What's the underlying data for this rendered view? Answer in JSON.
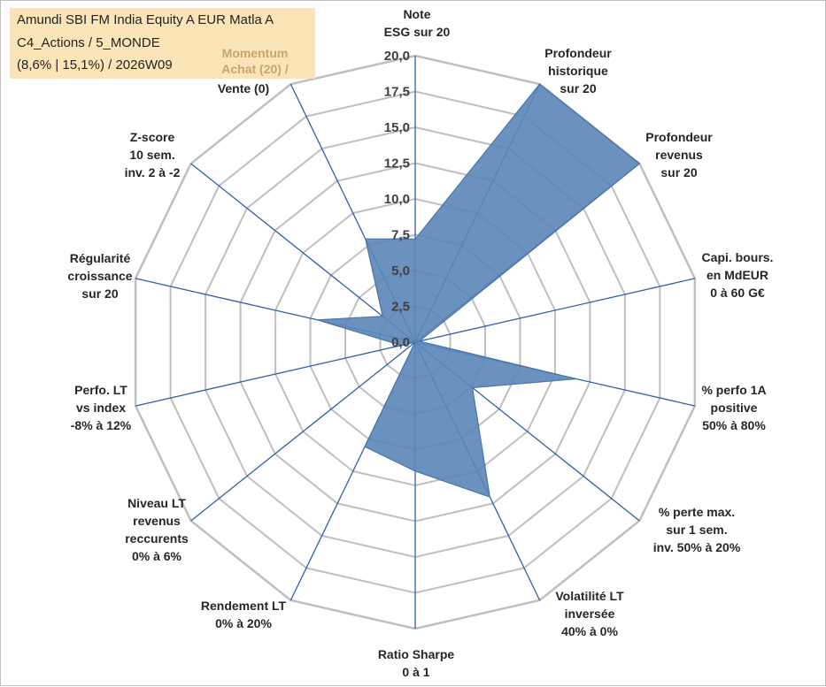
{
  "title": {
    "line1": "Amundi SBI FM India Equity A EUR Matla A",
    "line2": "C4_Actions / 5_MONDE",
    "line3": "(8,6% | 15,1%) / 2026W09"
  },
  "chart_data": {
    "type": "radar",
    "title": "Amundi SBI FM India Equity A EUR Matla A",
    "rlim": [
      0,
      20
    ],
    "ticks": [
      "0,0",
      "2,5",
      "5,0",
      "7,5",
      "10,0",
      "12,5",
      "15,0",
      "17,5",
      "20,0"
    ],
    "grid": true,
    "legend": "none",
    "colors": {
      "fill": "#5b86b8",
      "stroke": "#4a74a8",
      "spokes": "#2e5fa8",
      "grid": "#bfbfbf"
    },
    "axes": [
      {
        "label": [
          "Note",
          "ESG sur 20"
        ],
        "value": 7.2
      },
      {
        "label": [
          "Profondeur",
          "historique",
          "sur 20"
        ],
        "value": 20.0
      },
      {
        "label": [
          "Profondeur",
          "revenus",
          "sur 20"
        ],
        "value": 20.0
      },
      {
        "label": [
          "Capi. bours.",
          "en MdEUR",
          "0 à 60 G€"
        ],
        "value": 0.3
      },
      {
        "label": [
          "% perfo 1A",
          "positive",
          "50% à 80%"
        ],
        "value": 11.5
      },
      {
        "label": [
          "% perte max.",
          "sur 1 sem.",
          "inv. 50% à 20%"
        ],
        "value": 5.1
      },
      {
        "label": [
          "Volatilité LT",
          "inversée",
          "40% à 0%"
        ],
        "value": 12.0
      },
      {
        "label": [
          "Ratio Sharpe",
          "0 à 1"
        ],
        "value": 9.0
      },
      {
        "label": [
          "Rendement LT",
          "0% à 20%"
        ],
        "value": 8.1
      },
      {
        "label": [
          "Niveau LT",
          "revenus",
          "reccurents",
          "0% à 6%"
        ],
        "value": 0.0
      },
      {
        "label": [
          "Perfo. LT",
          "vs index",
          "-8% à 12%"
        ],
        "value": 1.0
      },
      {
        "label": [
          "Régularité",
          "croissance",
          "sur 20"
        ],
        "value": 7.0
      },
      {
        "label": [
          "Z-score",
          "10 sem.",
          "inv. 2 à -2"
        ],
        "value": 2.9
      },
      {
        "label": [
          "Momentum",
          "Achat (20) /",
          "Vente (0)"
        ],
        "value": 8.0
      }
    ]
  }
}
